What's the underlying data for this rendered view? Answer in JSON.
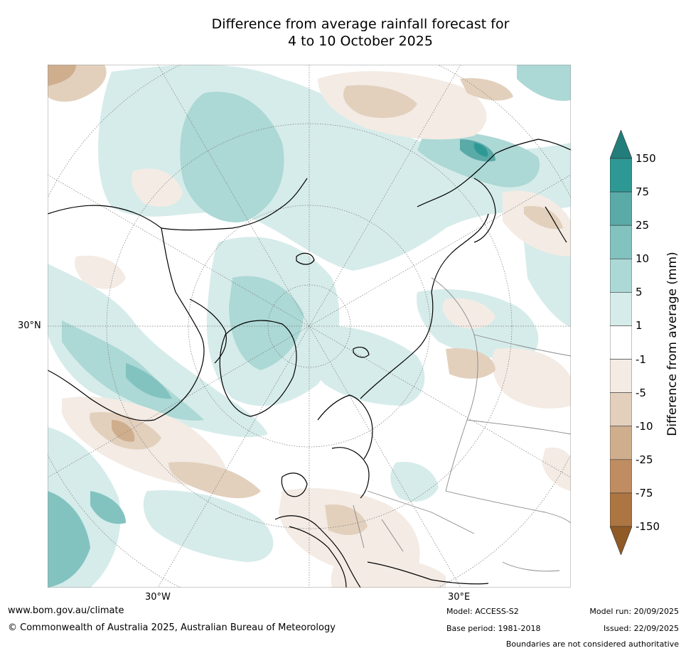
{
  "title": {
    "line1": "Difference from average rainfall forecast for",
    "line2": "4 to 10 October 2025"
  },
  "map": {
    "lat_labels": [
      "30°N"
    ],
    "lon_labels": [
      "30°W",
      "30°E"
    ]
  },
  "colorbar": {
    "title": "Difference from average (mm)",
    "ticks": [
      "150",
      "75",
      "25",
      "10",
      "5",
      "1",
      "-1",
      "-5",
      "-10",
      "-25",
      "-75",
      "-150"
    ],
    "colors": [
      "#237e7b",
      "#2e9994",
      "#5aaaa8",
      "#82c3c0",
      "#acd8d5",
      "#d6ecea",
      "#ffffff",
      "#f3ebe4",
      "#e2d0bd",
      "#cfae8e",
      "#bf8d61",
      "#ac7541",
      "#8f5a26"
    ]
  },
  "footer": {
    "website": "www.bom.gov.au/climate",
    "copyright": "© Commonwealth of Australia 2025, Australian Bureau of Meteorology",
    "model": "Model: ACCESS-S2",
    "base_period": "Base period: 1981-2018",
    "model_run": "Model run: 20/09/2025",
    "issued": "Issued: 22/09/2025",
    "disclaimer": "Boundaries are not considered authoritative"
  }
}
